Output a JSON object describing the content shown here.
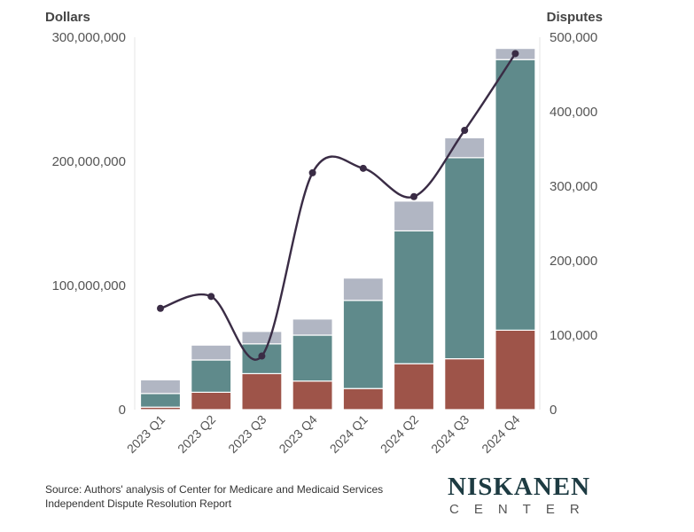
{
  "chart_data": {
    "type": "bar",
    "stacked": true,
    "categories": [
      "2023 Q1",
      "2023 Q2",
      "2023 Q3",
      "2023 Q4",
      "2024 Q1",
      "2024 Q2",
      "2024 Q3",
      "2024 Q4"
    ],
    "left_axis": {
      "title": "Dollars",
      "range": [
        0,
        300000000
      ],
      "ticks": [
        "0",
        "100,000,000",
        "200,000,000",
        "300,000,000"
      ]
    },
    "right_axis": {
      "title": "Disputes",
      "range": [
        0,
        500000
      ],
      "ticks": [
        "0",
        "100,000",
        "200,000",
        "300,000",
        "400,000",
        "500,000"
      ]
    },
    "series": [
      {
        "kind": "bar",
        "color": "#9e5449",
        "values": [
          2000000,
          14000000,
          29000000,
          23000000,
          17000000,
          37000000,
          41000000,
          64000000
        ]
      },
      {
        "kind": "bar",
        "color": "#5f8a8b",
        "values": [
          11000000,
          26000000,
          24000000,
          37000000,
          71000000,
          107000000,
          162000000,
          218000000
        ]
      },
      {
        "kind": "bar",
        "color": "#b1b6c3",
        "values": [
          11000000,
          12000000,
          10000000,
          13000000,
          18000000,
          24000000,
          16000000,
          9000000
        ]
      },
      {
        "kind": "line",
        "axis": "right",
        "color": "#3a2c45",
        "values": [
          136000,
          152000,
          72000,
          318000,
          324000,
          286000,
          375000,
          478000
        ]
      }
    ],
    "grid": false
  },
  "source": {
    "line1": "Source: Authors' analysis of Center for Medicare and Medicaid Services",
    "line2": "Independent Dispute Resolution Report"
  },
  "logo": {
    "main": "NISKANEN",
    "sub": "CENTER"
  }
}
